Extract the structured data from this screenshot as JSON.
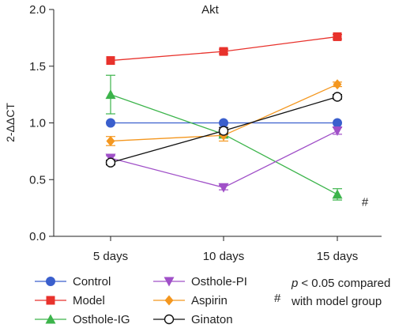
{
  "chart_data": {
    "type": "line",
    "title": "Akt",
    "xlabel": "",
    "ylabel": "2-ΔΔCT",
    "categories": [
      "5 days",
      "10 days",
      "15 days"
    ],
    "ylim": [
      0,
      2.0
    ],
    "yticks": [
      "0.0",
      "0.5",
      "1.0",
      "1.5",
      "2.0"
    ],
    "grid": false,
    "legend_position": "bottom",
    "series": [
      {
        "name": "Control",
        "values": [
          1.0,
          1.0,
          1.0
        ],
        "errors": [
          0,
          0,
          0
        ],
        "color": "#3a5fcd",
        "marker": "circle-filled"
      },
      {
        "name": "Model",
        "values": [
          1.55,
          1.63,
          1.76
        ],
        "errors": [
          0,
          0.02,
          0.02
        ],
        "color": "#e8322c",
        "marker": "square"
      },
      {
        "name": "Osthole-IG",
        "values": [
          1.25,
          0.9,
          0.37
        ],
        "errors": [
          0.17,
          0.02,
          0.05
        ],
        "color": "#3cb44b",
        "marker": "triangle-up"
      },
      {
        "name": "Osthole-PI",
        "values": [
          0.69,
          0.43,
          0.93
        ],
        "errors": [
          0.02,
          0.02,
          0.03
        ],
        "color": "#a050c8",
        "marker": "triangle-down"
      },
      {
        "name": "Aspirin",
        "values": [
          0.84,
          0.89,
          1.34
        ],
        "errors": [
          0.04,
          0.05,
          0.02
        ],
        "color": "#f4971f",
        "marker": "diamond"
      },
      {
        "name": "Ginaton",
        "values": [
          0.65,
          0.93,
          1.23
        ],
        "errors": [
          0.02,
          0.03,
          0.02
        ],
        "color": "#111111",
        "marker": "circle-open"
      }
    ],
    "annotations": [
      {
        "text": "#",
        "category": "15 days"
      }
    ],
    "legend_note": {
      "symbol": "#",
      "p_text": "p",
      "line1_rest": "< 0.05 compared",
      "line2": "with model group"
    }
  }
}
